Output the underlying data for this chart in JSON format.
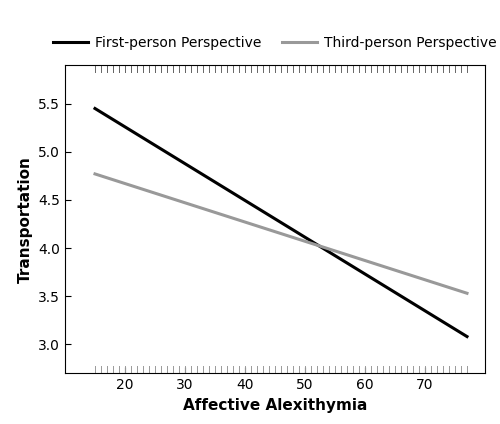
{
  "xlabel": "Affective Alexithymia",
  "ylabel": "Transportation",
  "xlim": [
    10,
    80
  ],
  "ylim": [
    2.7,
    5.9
  ],
  "xticks": [
    20,
    30,
    40,
    50,
    60,
    70
  ],
  "yticks": [
    3.0,
    3.5,
    4.0,
    4.5,
    5.0,
    5.5
  ],
  "first_person": {
    "x": [
      15,
      77
    ],
    "y": [
      5.45,
      3.08
    ],
    "color": "#000000",
    "linewidth": 2.2,
    "label": "First-person Perspective"
  },
  "third_person": {
    "x": [
      15,
      77
    ],
    "y": [
      4.77,
      3.53
    ],
    "color": "#999999",
    "linewidth": 2.2,
    "label": "Third-person Perspective"
  },
  "rug_top_color": "#666666",
  "rug_bottom_color": "#999999",
  "rug_top_x": [
    15,
    16,
    17,
    17,
    18,
    18,
    19,
    19,
    20,
    20,
    20,
    21,
    21,
    22,
    22,
    23,
    23,
    24,
    24,
    25,
    25,
    26,
    26,
    27,
    27,
    28,
    28,
    29,
    30,
    30,
    31,
    31,
    32,
    33,
    34,
    35,
    36,
    37,
    38,
    39,
    40,
    41,
    42,
    43,
    44,
    45,
    46,
    47,
    48,
    49,
    50,
    51,
    52,
    53,
    54,
    55,
    56,
    57,
    58,
    59,
    60,
    61,
    62,
    63,
    64,
    65,
    66,
    67,
    68,
    69,
    70,
    71,
    72,
    73,
    74,
    75,
    76,
    77
  ],
  "rug_bottom_x": [
    15,
    16,
    17,
    18,
    19,
    20,
    21,
    22,
    23,
    24,
    25,
    26,
    27,
    28,
    29,
    30,
    31,
    32,
    33,
    34,
    35,
    36,
    37,
    38,
    39,
    40,
    41,
    42,
    43,
    44,
    45,
    46,
    47,
    48,
    49,
    50,
    51,
    52,
    53,
    54,
    55,
    56,
    57,
    58,
    59,
    60,
    61,
    62,
    63,
    64,
    65,
    66,
    67,
    68,
    69,
    70,
    71,
    72,
    73,
    74,
    75,
    76,
    77
  ],
  "background_color": "#ffffff",
  "fig_width": 5.0,
  "fig_height": 4.24,
  "dpi": 100
}
